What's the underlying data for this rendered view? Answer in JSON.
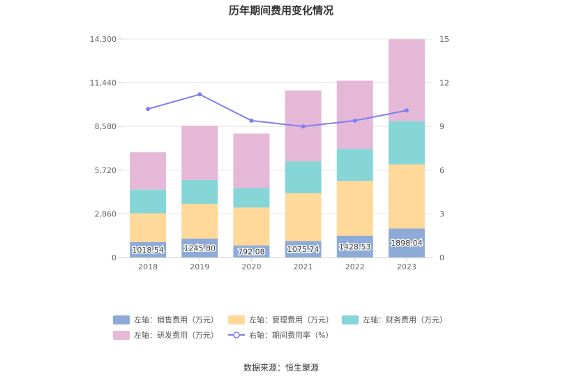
{
  "chart_data": {
    "type": "bar",
    "title": "历年期间费用变化情况",
    "categories": [
      "2018",
      "2019",
      "2020",
      "2021",
      "2022",
      "2023"
    ],
    "series": [
      {
        "name": "左轴：销售费用（万元）",
        "values": [
          1018.54,
          1245.8,
          792.08,
          1075.74,
          1428.53,
          1898.04
        ],
        "color": "#8eabd8"
      },
      {
        "name": "左轴：管理费用（万元）",
        "values": [
          1870,
          2270,
          2480,
          3130,
          3580,
          4200
        ],
        "color": "#ffd89a"
      },
      {
        "name": "左轴：财务费用（万元）",
        "values": [
          1560,
          1560,
          1270,
          2090,
          2110,
          2830
        ],
        "color": "#86d6d8"
      },
      {
        "name": "左轴：研发费用（万元）",
        "values": [
          2440,
          3550,
          3570,
          4640,
          4460,
          5360
        ],
        "color": "#e6b8d8"
      }
    ],
    "line": {
      "name": "右轴：期间费用率（%）",
      "values": [
        10.2,
        11.2,
        9.4,
        9.0,
        9.4,
        10.1
      ],
      "color": "#7b7ff0"
    },
    "y_left": {
      "ticks": [
        "0",
        "2,860",
        "5,720",
        "8,580",
        "11,440",
        "14,300"
      ],
      "min": 0,
      "max": 14300
    },
    "y_right": {
      "ticks": [
        "0",
        "3",
        "6",
        "9",
        "12",
        "15"
      ],
      "min": 0,
      "max": 15
    },
    "grid": true,
    "legend_position": "bottom",
    "source": "数据来源：恒生聚源"
  }
}
